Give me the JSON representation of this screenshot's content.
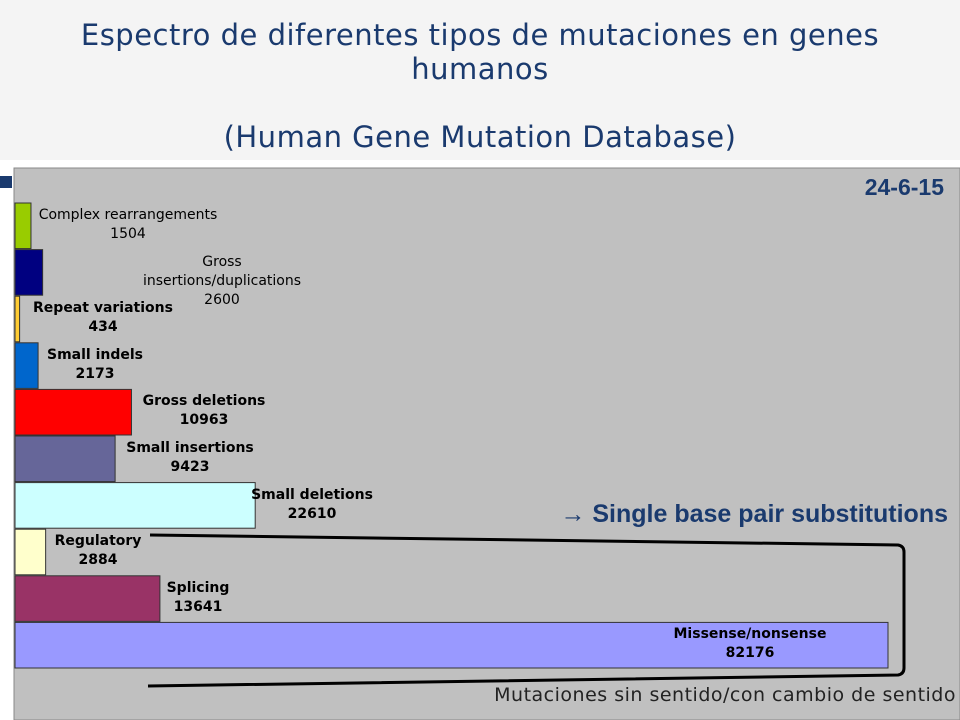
{
  "chart_data": {
    "type": "bar",
    "orientation": "horizontal",
    "title": "Espectro de diferentes tipos de mutaciones en genes humanos",
    "subtitle": "(Human Gene Mutation Database)",
    "date": "24-6-15",
    "annotation": "→ Single base pair substitutions",
    "bracket_label": "Mutaciones sin sentido/con cambio de sentido",
    "categories": [
      "Complex rearrangements",
      "Gross insertions/duplications",
      "Repeat variations",
      "Small indels",
      "Gross deletions",
      "Small insertions",
      "Small deletions",
      "Regulatory",
      "Splicing",
      "Missense/nonsense"
    ],
    "values": [
      1504,
      2600,
      434,
      2173,
      10963,
      9423,
      22610,
      2884,
      13641,
      82176
    ],
    "colors": [
      "#99cc00",
      "#000080",
      "#ffcc33",
      "#0066cc",
      "#ff0000",
      "#666699",
      "#ccffff",
      "#ffffcc",
      "#993366",
      "#9999ff"
    ]
  }
}
